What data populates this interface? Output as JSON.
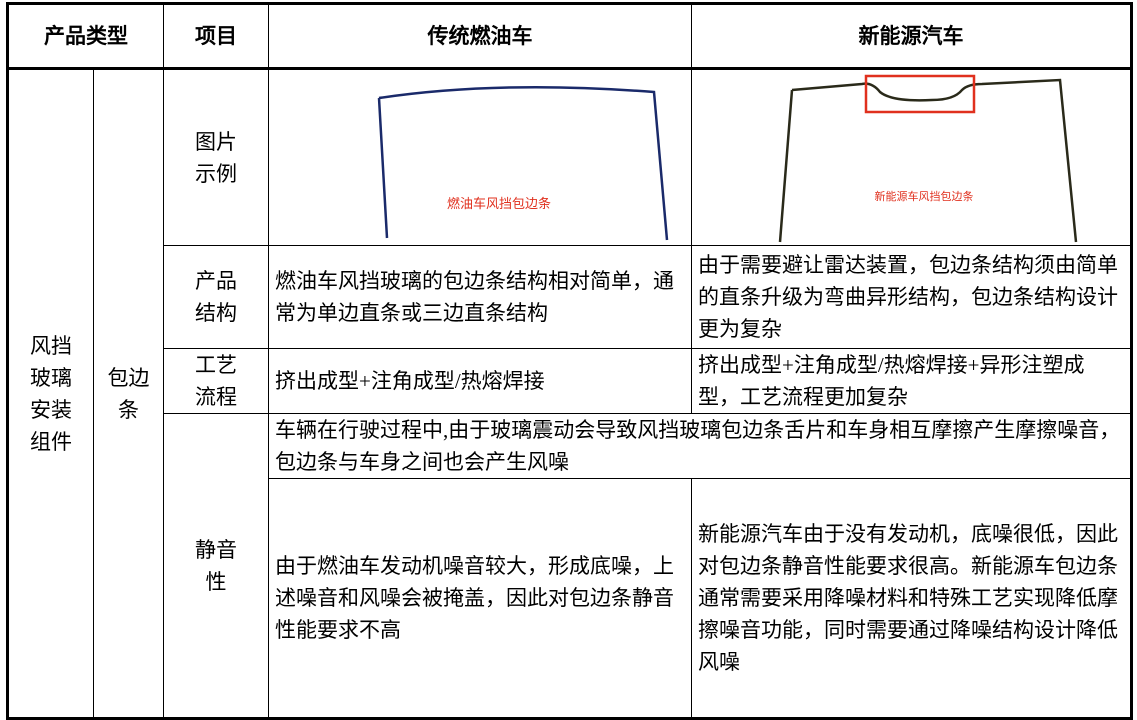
{
  "header": {
    "product_type": "产品类型",
    "item": "项目",
    "fuel": "传统燃油车",
    "nev": "新能源汽车"
  },
  "category": "风挡玻璃安装组件",
  "part": "包边条",
  "rows": [
    {
      "item": "图片示例",
      "fuel_caption": "燃油车风挡包边条",
      "nev_caption": "新能源车风挡包边条"
    },
    {
      "item": "产品结构",
      "fuel": "燃油车风挡玻璃的包边条结构相对简单，通常为单边直条或三边直条结构",
      "nev": "由于需要避让雷达装置，包边条结构须由简单的直条升级为弯曲异形结构，包边条结构设计更为复杂"
    },
    {
      "item": "工艺流程",
      "fuel": "挤出成型+注角成型/热熔焊接",
      "nev": "挤出成型+注角成型/热熔焊接+异形注塑成型，工艺流程更加复杂"
    },
    {
      "item": "静音性",
      "common": "车辆在行驶过程中,由于玻璃震动会导致风挡玻璃包边条舌片和车身相互摩擦产生摩擦噪音，包边条与车身之间也会产生风噪",
      "fuel": "由于燃油车发动机噪音较大，形成底噪，上述噪音和风噪会被掩盖，因此对包边条静音性能要求不高",
      "nev": "新能源汽车由于没有发动机，底噪很低，因此对包边条静音性能要求很高。新能源车包边条通常需要采用降噪材料和特殊工艺实现降低摩擦噪音功能，同时需要通过降噪结构设计降低风噪"
    }
  ]
}
